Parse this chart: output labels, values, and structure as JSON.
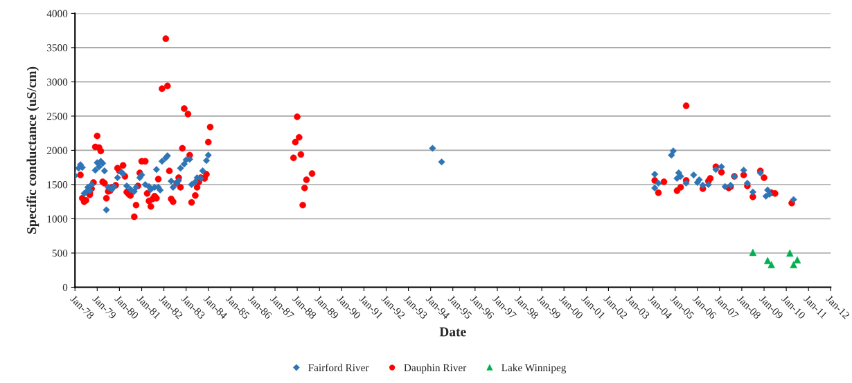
{
  "chart_data": {
    "type": "scatter",
    "xlabel": "Date",
    "ylabel": "Specific conductance (uS/cm)",
    "xlim": [
      "1978-01",
      "2012-01"
    ],
    "xticks": [
      {
        "value": "1978-01",
        "label": "Jan-78"
      },
      {
        "value": "1979-01",
        "label": "Jan-79"
      },
      {
        "value": "1980-01",
        "label": "Jan-80"
      },
      {
        "value": "1981-01",
        "label": "Jan-81"
      },
      {
        "value": "1982-01",
        "label": "Jan-82"
      },
      {
        "value": "1983-01",
        "label": "Jan-83"
      },
      {
        "value": "1984-01",
        "label": "Jan-84"
      },
      {
        "value": "1985-01",
        "label": "Jan-85"
      },
      {
        "value": "1986-01",
        "label": "Jan-86"
      },
      {
        "value": "1987-01",
        "label": "Jan-87"
      },
      {
        "value": "1988-01",
        "label": "Jan-88"
      },
      {
        "value": "1989-01",
        "label": "Jan-89"
      },
      {
        "value": "1990-01",
        "label": "Jan-90"
      },
      {
        "value": "1991-01",
        "label": "Jan-91"
      },
      {
        "value": "1992-01",
        "label": "Jan-92"
      },
      {
        "value": "1993-01",
        "label": "Jan-93"
      },
      {
        "value": "1994-01",
        "label": "Jan-94"
      },
      {
        "value": "1995-01",
        "label": "Jan-95"
      },
      {
        "value": "1996-01",
        "label": "Jan-96"
      },
      {
        "value": "1997-01",
        "label": "Jan-97"
      },
      {
        "value": "1998-01",
        "label": "Jan-98"
      },
      {
        "value": "1999-01",
        "label": "Jan-99"
      },
      {
        "value": "2000-01",
        "label": "Jan-00"
      },
      {
        "value": "2001-01",
        "label": "Jan-01"
      },
      {
        "value": "2002-01",
        "label": "Jan-02"
      },
      {
        "value": "2003-01",
        "label": "Jan-03"
      },
      {
        "value": "2004-01",
        "label": "Jan-04"
      },
      {
        "value": "2005-01",
        "label": "Jan-05"
      },
      {
        "value": "2006-01",
        "label": "Jan-06"
      },
      {
        "value": "2007-01",
        "label": "Jan-07"
      },
      {
        "value": "2008-01",
        "label": "Jan-08"
      },
      {
        "value": "2009-01",
        "label": "Jan-09"
      },
      {
        "value": "2010-01",
        "label": "Jan-10"
      },
      {
        "value": "2011-01",
        "label": "Jan-11"
      },
      {
        "value": "2012-01",
        "label": "Jan-12"
      }
    ],
    "ylim": [
      0,
      4000
    ],
    "yticks": [
      0,
      500,
      1000,
      1500,
      2000,
      2500,
      3000,
      3500,
      4000
    ],
    "grid": "y",
    "legend": "bottom",
    "series": [
      {
        "name": "Fairford River",
        "color": "#2e75b6",
        "marker": "diamond",
        "x": [
          "1978-01",
          "1978-03",
          "1978-04",
          "1978-05",
          "1978-06",
          "1978-07",
          "1978-08",
          "1978-09",
          "1978-10",
          "1978-12",
          "1979-01",
          "1979-02",
          "1979-03",
          "1979-04",
          "1979-05",
          "1979-06",
          "1979-07",
          "1979-09",
          "1979-10",
          "1979-12",
          "1980-02",
          "1980-03",
          "1980-05",
          "1980-07",
          "1980-09",
          "1980-10",
          "1980-12",
          "1981-01",
          "1981-03",
          "1981-05",
          "1981-06",
          "1981-08",
          "1981-09",
          "1981-10",
          "1981-11",
          "1981-12",
          "1982-02",
          "1982-03",
          "1982-05",
          "1982-06",
          "1982-08",
          "1982-09",
          "1982-10",
          "1982-12",
          "1983-01",
          "1983-03",
          "1983-04",
          "1983-06",
          "1983-07",
          "1983-09",
          "1983-10",
          "1983-12",
          "1984-01",
          "1994-02",
          "1994-07",
          "2004-02",
          "2004-02",
          "2004-04",
          "2004-11",
          "2004-12",
          "2005-02",
          "2005-03",
          "2005-04",
          "2005-07",
          "2005-11",
          "2006-01",
          "2006-02",
          "2006-04",
          "2006-07",
          "2006-11",
          "2007-02",
          "2007-04",
          "2007-07",
          "2007-09",
          "2008-02",
          "2008-04",
          "2008-07",
          "2008-11",
          "2009-02",
          "2009-03",
          "2009-04",
          "2010-05"
        ],
        "values": [
          1630,
          1740,
          1790,
          1750,
          1370,
          1390,
          1460,
          1410,
          1500,
          1710,
          1820,
          1760,
          1840,
          1810,
          1700,
          1130,
          1460,
          1430,
          1470,
          1600,
          1680,
          1660,
          1480,
          1430,
          1400,
          1460,
          1600,
          1640,
          1500,
          1470,
          1430,
          1460,
          1720,
          1460,
          1420,
          1840,
          1890,
          1920,
          1550,
          1460,
          1520,
          1560,
          1740,
          1800,
          1860,
          1870,
          1500,
          1540,
          1600,
          1590,
          1700,
          1850,
          1930,
          2030,
          1830,
          1650,
          1450,
          1520,
          1930,
          1990,
          1590,
          1670,
          1620,
          1520,
          1640,
          1530,
          1570,
          1490,
          1500,
          1720,
          1760,
          1470,
          1490,
          1620,
          1710,
          1520,
          1390,
          1670,
          1330,
          1420,
          1360,
          1280
        ]
      },
      {
        "name": "Dauphin River",
        "color": "#ff0000",
        "marker": "circle",
        "x": [
          "1978-04",
          "1978-05",
          "1978-06",
          "1978-07",
          "1978-09",
          "1978-09",
          "1978-10",
          "1978-11",
          "1978-12",
          "1979-01",
          "1979-02",
          "1979-03",
          "1979-04",
          "1979-05",
          "1979-06",
          "1979-07",
          "1979-08",
          "1979-09",
          "1979-11",
          "1979-12",
          "1980-01",
          "1980-03",
          "1980-04",
          "1980-05",
          "1980-06",
          "1980-07",
          "1980-09",
          "1980-10",
          "1980-11",
          "1980-12",
          "1981-01",
          "1981-03",
          "1981-04",
          "1981-05",
          "1981-06",
          "1981-07",
          "1981-08",
          "1981-09",
          "1981-10",
          "1981-12",
          "1982-02",
          "1982-03",
          "1982-04",
          "1982-05",
          "1982-06",
          "1982-08",
          "1982-09",
          "1982-10",
          "1982-11",
          "1982-12",
          "1983-02",
          "1983-03",
          "1983-04",
          "1983-06",
          "1983-07",
          "1983-08",
          "1983-09",
          "1983-11",
          "1983-12",
          "1984-01",
          "1984-02",
          "1987-11",
          "1987-12",
          "1988-01",
          "1988-02",
          "1988-03",
          "1988-04",
          "1988-05",
          "1988-06",
          "1988-09",
          "2004-02",
          "2004-04",
          "2004-07",
          "2005-02",
          "2005-04",
          "2005-07",
          "2005-07",
          "2006-04",
          "2006-07",
          "2006-08",
          "2006-11",
          "2007-02",
          "2007-06",
          "2007-07",
          "2007-09",
          "2008-02",
          "2008-04",
          "2008-07",
          "2008-11",
          "2009-01",
          "2009-05",
          "2009-07",
          "2010-04"
        ],
        "values": [
          1640,
          1300,
          1250,
          1270,
          1350,
          1380,
          1440,
          1530,
          2050,
          2210,
          2040,
          1990,
          1540,
          1520,
          1300,
          1400,
          1410,
          1460,
          1490,
          1740,
          1700,
          1780,
          1620,
          1390,
          1360,
          1340,
          1030,
          1200,
          1480,
          1670,
          1840,
          1840,
          1370,
          1260,
          1180,
          1290,
          1330,
          1300,
          1580,
          2900,
          3630,
          2940,
          1700,
          1290,
          1250,
          1520,
          1600,
          1460,
          2030,
          2610,
          2530,
          1930,
          1240,
          1340,
          1460,
          1540,
          1600,
          1590,
          1650,
          2120,
          2340,
          1890,
          2120,
          2490,
          2190,
          1940,
          1200,
          1450,
          1570,
          1660,
          1560,
          1380,
          1540,
          1410,
          1460,
          2650,
          1560,
          1440,
          1550,
          1590,
          1760,
          1680,
          1450,
          1470,
          1620,
          1640,
          1480,
          1320,
          1700,
          1600,
          1380,
          1370,
          1230
        ]
      },
      {
        "name": "Lake Winnipeg",
        "color": "#00b050",
        "marker": "triangle",
        "x": [
          "2008-07",
          "2009-03",
          "2009-05",
          "2010-03",
          "2010-05",
          "2010-07"
        ],
        "values": [
          510,
          390,
          330,
          500,
          330,
          400
        ]
      }
    ]
  }
}
